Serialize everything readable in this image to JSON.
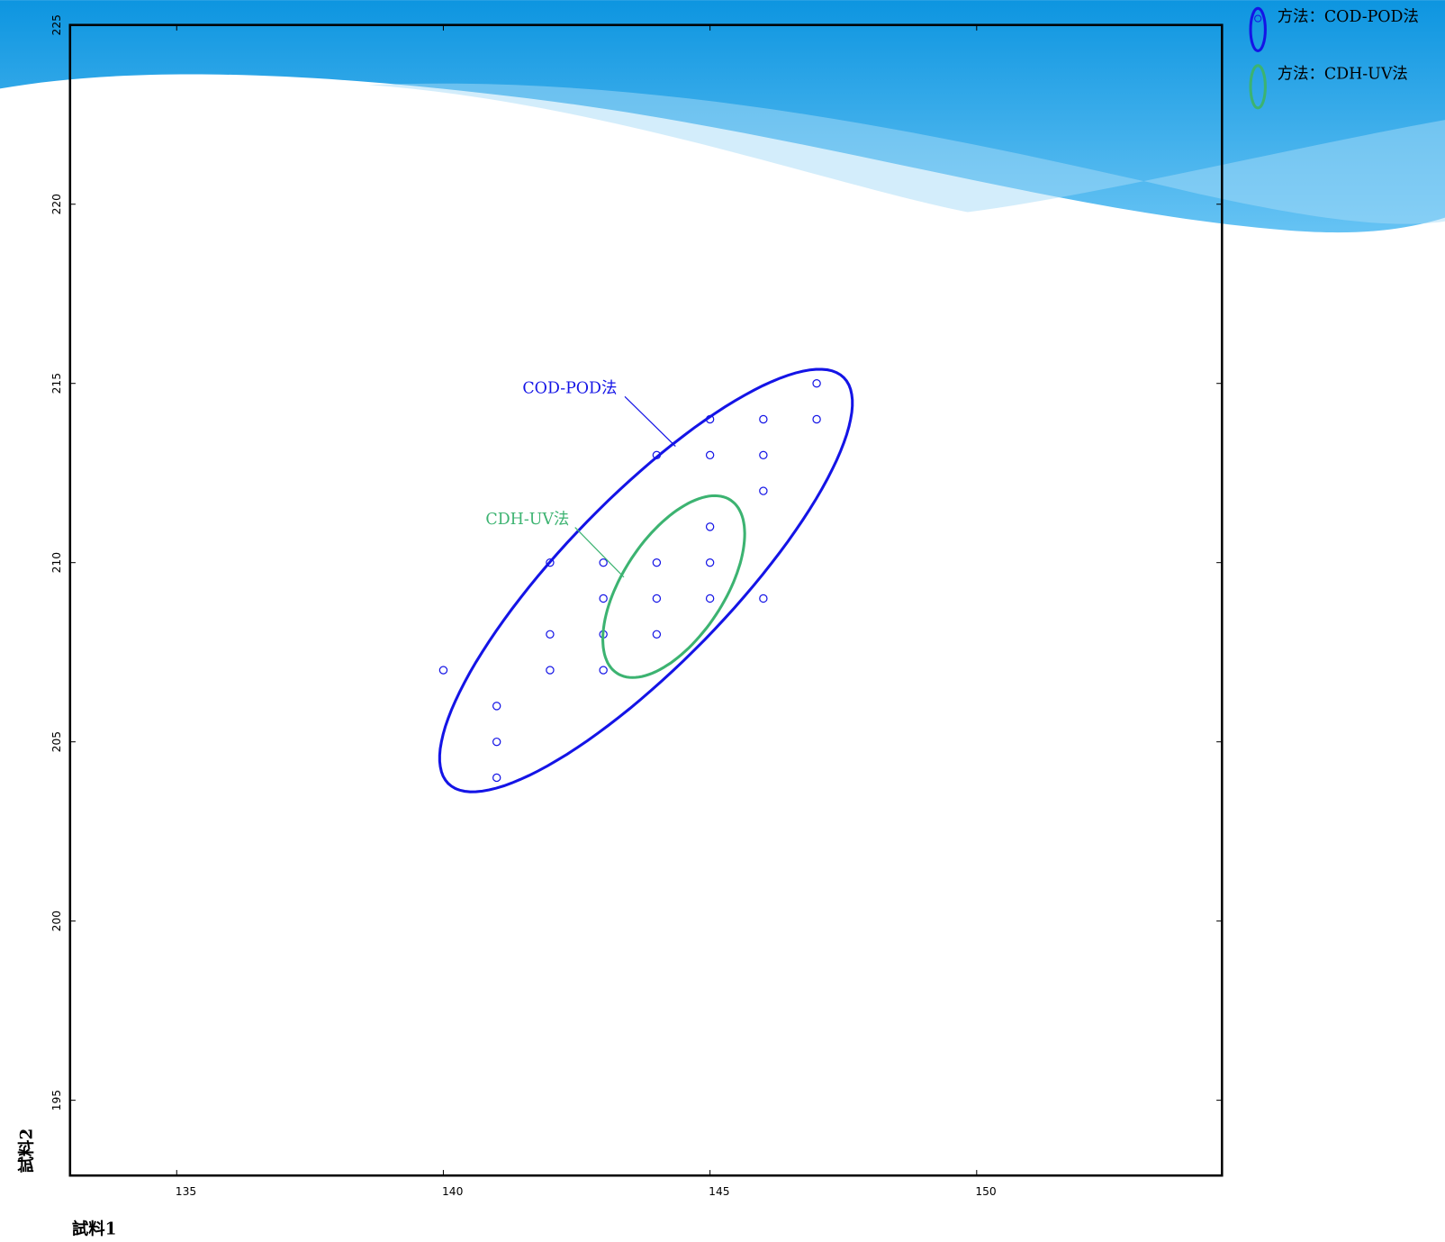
{
  "chart_data": {
    "type": "scatter",
    "xlabel": "試料1",
    "ylabel": "試料2",
    "xlim": [
      133,
      154.6
    ],
    "ylim": [
      192.9,
      225
    ],
    "xticks": [
      135,
      140,
      145,
      150
    ],
    "yticks": [
      195,
      200,
      205,
      210,
      215,
      220,
      225
    ],
    "series": [
      {
        "name": "方法：COD-POD法",
        "color": "#1414e6",
        "x": [
          147,
          145,
          146,
          147,
          144,
          145,
          146,
          146,
          145,
          142,
          143,
          144,
          145,
          143,
          144,
          145,
          146,
          142,
          143,
          144,
          140,
          142,
          143,
          141,
          141,
          141
        ],
        "values": [
          215,
          214,
          214,
          214,
          213,
          213,
          213,
          212,
          211,
          210,
          210,
          210,
          210,
          209,
          209,
          209,
          209,
          208,
          208,
          208,
          207,
          207,
          207,
          206,
          205,
          204
        ],
        "ellipse": {
          "center": [
            143.8,
            209.5
          ],
          "axis1": [
            3.71,
            5.66
          ],
          "axis2": [
            1.1,
            -1.65
          ]
        }
      },
      {
        "name": "方法：CDH-UV法",
        "color": "#3cb371",
        "ellipse": {
          "center": [
            144.32,
            209.33
          ],
          "axis1": [
            1.07,
            2.41
          ],
          "axis2": [
            0.79,
            -0.79
          ]
        }
      }
    ],
    "annotations": [
      {
        "text": "COD-POD法",
        "color": "#1414e6"
      },
      {
        "text": "CDH-UV法",
        "color": "#3cb371"
      }
    ]
  }
}
